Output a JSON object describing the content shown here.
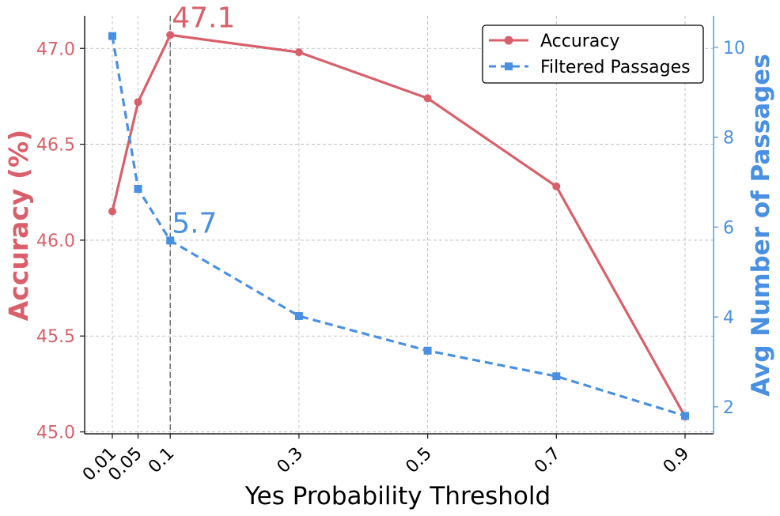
{
  "chart_data": {
    "type": "line",
    "xlabel": "Yes Probability Threshold",
    "ylabel_left": "Accuracy (%)",
    "ylabel_right": "Avg Number of Passages",
    "x": [
      0.01,
      0.05,
      0.1,
      0.3,
      0.5,
      0.7,
      0.9
    ],
    "x_tick_labels": [
      "0.01",
      "0.05",
      "0.1",
      "0.3",
      "0.5",
      "0.7",
      "0.9"
    ],
    "ylim_left": [
      44.99,
      47.17
    ],
    "ylim_right": [
      1.4,
      10.7
    ],
    "y_ticks_left": [
      45.0,
      45.5,
      46.0,
      46.5,
      47.0
    ],
    "y_tick_labels_left": [
      "45.0",
      "45.5",
      "46.0",
      "46.5",
      "47.0"
    ],
    "y_ticks_right": [
      2,
      4,
      6,
      8,
      10
    ],
    "y_tick_labels_right": [
      "2",
      "4",
      "6",
      "8",
      "10"
    ],
    "grid": true,
    "legend_position": "top-right",
    "series": [
      {
        "name": "Accuracy",
        "axis": "left",
        "color": "#d9606a",
        "marker": "circle",
        "linestyle": "solid",
        "values": [
          46.15,
          46.72,
          47.07,
          46.98,
          46.74,
          46.28,
          45.08
        ]
      },
      {
        "name": "Filtered Passages",
        "axis": "right",
        "color": "#4a90e2",
        "marker": "square",
        "linestyle": "dashed",
        "values": [
          10.25,
          6.85,
          5.7,
          4.02,
          3.25,
          2.68,
          1.8
        ]
      }
    ],
    "annotations": [
      {
        "text": "47.1",
        "x": 0.1,
        "y": 47.07,
        "axis": "left",
        "color": "#d9606a"
      },
      {
        "text": "5.7",
        "x": 0.1,
        "y": 5.7,
        "axis": "right",
        "color": "#4a90e2"
      }
    ],
    "reference_line_x": 0.1,
    "colors": {
      "left_axis": "#d9606a",
      "right_axis": "#4a90e2",
      "right_spine": "#5b9bd5",
      "grid": "#b8b8b8",
      "text": "#000000"
    }
  }
}
